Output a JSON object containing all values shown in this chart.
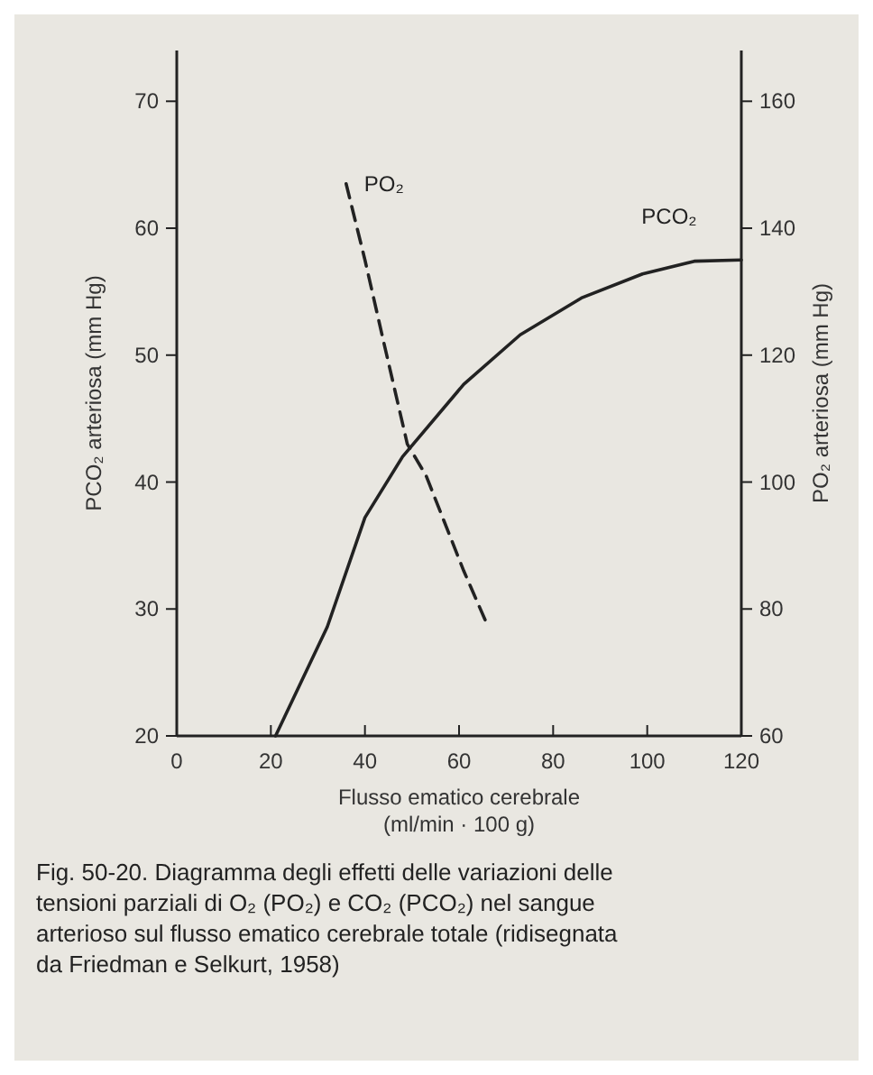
{
  "chart_data": {
    "type": "line",
    "xlabel": "Flusso ematico cerebrale\n(ml/min · 100 g)",
    "ylabel": "PCO₂ arteriosa (mm Hg)",
    "y2label": "PO₂ arteriosa (mm Hg)",
    "xlim": [
      0,
      120
    ],
    "xticks": [
      0,
      20,
      40,
      60,
      80,
      100,
      120
    ],
    "ylim": [
      20,
      74
    ],
    "yticks": [
      20,
      30,
      40,
      50,
      60,
      70
    ],
    "y2lim": [
      60,
      168
    ],
    "y2ticks": [
      60,
      80,
      100,
      120,
      140,
      160
    ],
    "grid": false,
    "marker": "none",
    "series": [
      {
        "name": "PO₂",
        "color": "#222222",
        "axis": "y2",
        "line_style": "dashed",
        "x": [
          36,
          40,
          44,
          49,
          53,
          61,
          66
        ],
        "values": [
          147,
          135,
          122,
          106,
          101,
          86,
          77.5
        ]
      },
      {
        "name": "PCO₂",
        "color": "#222222",
        "axis": "y",
        "line_style": "solid",
        "x": [
          21,
          32,
          40,
          48,
          61,
          73,
          86,
          99,
          110,
          120
        ],
        "values": [
          20,
          28.6,
          37.2,
          42,
          47.7,
          51.6,
          54.5,
          56.4,
          57.4,
          57.5
        ]
      }
    ],
    "annotations": [
      "Fig. 50-20. Diagramma degli effetti delle variazioni delle tensioni parziali di O₂ (PO₂) e CO₂ (PCO₂) nel sangue arterioso sul flusso ematico cerebrale totale (ridisegnata da Friedman e Selkurt, 1958)"
    ]
  }
}
